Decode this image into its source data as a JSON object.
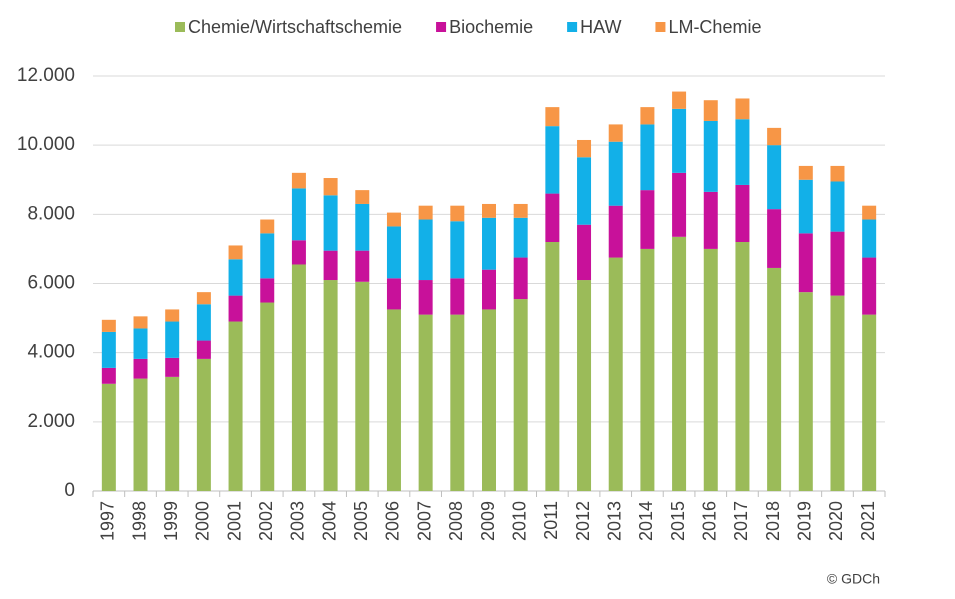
{
  "chart_data": {
    "type": "stacked_bar",
    "categories": [
      "1997",
      "1998",
      "1999",
      "2000",
      "2001",
      "2002",
      "2003",
      "2004",
      "2005",
      "2006",
      "2007",
      "2008",
      "2009",
      "2010",
      "2011",
      "2012",
      "2013",
      "2014",
      "2015",
      "2016",
      "2017",
      "2018",
      "2019",
      "2020",
      "2021"
    ],
    "series": [
      {
        "name": "Chemie/Wirtschaftschemie",
        "color": "#9bbb59",
        "values": [
          3100,
          3250,
          3300,
          3820,
          4900,
          5450,
          6550,
          6100,
          6050,
          5250,
          5100,
          5100,
          5250,
          5550,
          7200,
          6100,
          6750,
          7000,
          7350,
          7000,
          7200,
          6450,
          5750,
          5650,
          5100
        ]
      },
      {
        "name": "Biochemie",
        "color": "#c8119a",
        "values": [
          460,
          570,
          550,
          530,
          750,
          700,
          700,
          850,
          900,
          900,
          1000,
          1050,
          1150,
          1200,
          1400,
          1600,
          1500,
          1700,
          1850,
          1650,
          1650,
          1700,
          1700,
          1850,
          1650
        ]
      },
      {
        "name": "HAW",
        "color": "#12b0e8",
        "values": [
          1040,
          880,
          1050,
          1050,
          1050,
          1300,
          1500,
          1600,
          1350,
          1500,
          1750,
          1650,
          1500,
          1150,
          1950,
          1950,
          1850,
          1900,
          1850,
          2050,
          1900,
          1850,
          1550,
          1450,
          1100
        ]
      },
      {
        "name": "LM-Chemie",
        "color": "#f79646",
        "values": [
          350,
          350,
          350,
          350,
          400,
          400,
          450,
          500,
          400,
          400,
          400,
          450,
          400,
          400,
          550,
          500,
          500,
          500,
          500,
          600,
          600,
          500,
          400,
          450,
          400
        ]
      }
    ],
    "ylim": [
      0,
      12000
    ],
    "yticks": [
      0,
      {
        "value": 2000,
        "label": "2.000"
      },
      {
        "value": 4000,
        "label": "4.000"
      },
      {
        "value": 6000,
        "label": "6.000"
      },
      {
        "value": 8000,
        "label": "8.000"
      },
      {
        "value": 10000,
        "label": "10.000"
      },
      {
        "value": 12000,
        "label": "12.000"
      }
    ],
    "grid": true,
    "legend": "top",
    "credit": "© GDCh"
  }
}
